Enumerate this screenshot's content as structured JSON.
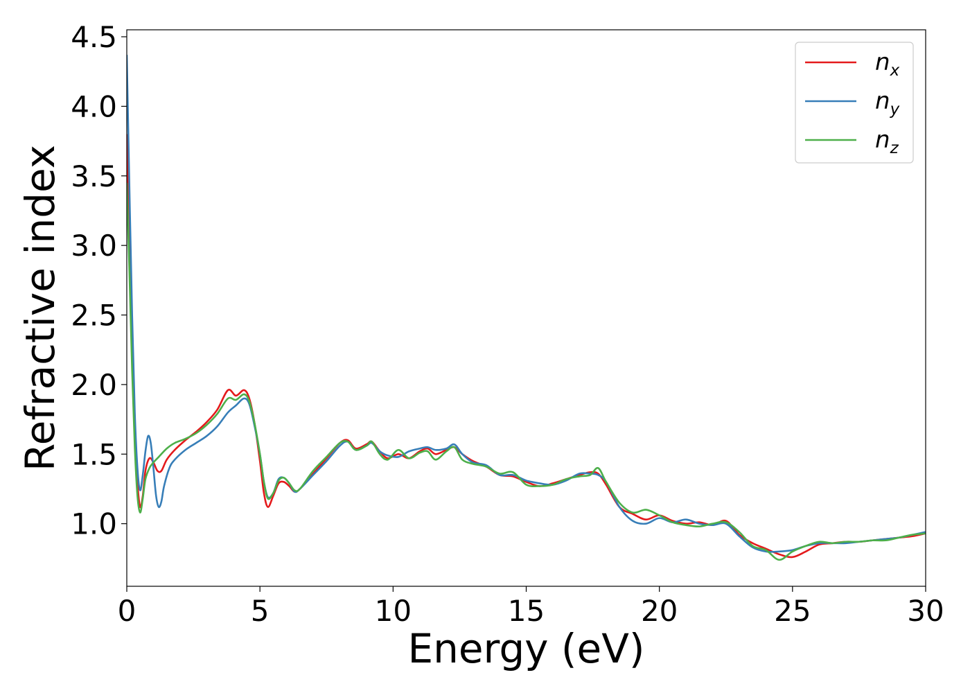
{
  "chart_data": {
    "type": "line",
    "xlabel": "Energy (eV)",
    "ylabel": "Refractive index",
    "xlim": [
      0,
      30
    ],
    "ylim": [
      0.55,
      4.55
    ],
    "xticks": [
      0,
      5,
      10,
      15,
      20,
      25,
      30
    ],
    "xtick_labels": [
      "0",
      "5",
      "10",
      "15",
      "20",
      "25",
      "30"
    ],
    "yticks": [
      1.0,
      1.5,
      2.0,
      2.5,
      3.0,
      3.5,
      4.0,
      4.5
    ],
    "ytick_labels": [
      "1.0",
      "1.5",
      "2.0",
      "2.5",
      "3.0",
      "3.5",
      "4.0",
      "4.5"
    ],
    "grid": false,
    "legend_position": "top-right",
    "series": [
      {
        "name": "n_x",
        "legend_base": "n",
        "legend_sub": "x",
        "color": "#e41a1c",
        "x": [
          0.0,
          0.1,
          0.2,
          0.3,
          0.4,
          0.5,
          0.6,
          0.7,
          0.85,
          1.0,
          1.15,
          1.3,
          1.5,
          1.8,
          2.2,
          2.6,
          3.0,
          3.4,
          3.8,
          4.1,
          4.4,
          4.6,
          4.8,
          5.0,
          5.15,
          5.3,
          5.5,
          5.7,
          5.9,
          6.1,
          6.3,
          6.5,
          7.0,
          7.5,
          8.0,
          8.3,
          8.6,
          9.0,
          9.2,
          9.5,
          9.8,
          10.2,
          10.6,
          11.0,
          11.3,
          11.6,
          12.0,
          12.3,
          12.6,
          13.0,
          13.5,
          14.0,
          14.5,
          15.0,
          15.5,
          16.0,
          16.5,
          17.0,
          17.4,
          17.7,
          18.0,
          18.5,
          19.0,
          19.5,
          20.0,
          20.5,
          21.0,
          21.5,
          22.0,
          22.5,
          23.0,
          23.5,
          24.0,
          24.5,
          25.0,
          25.5,
          26.0,
          26.5,
          27.0,
          27.5,
          28.0,
          28.5,
          29.0,
          29.5,
          30.0
        ],
        "y": [
          3.8,
          3.0,
          2.3,
          1.7,
          1.3,
          1.12,
          1.2,
          1.38,
          1.47,
          1.44,
          1.38,
          1.38,
          1.46,
          1.53,
          1.6,
          1.66,
          1.73,
          1.82,
          1.96,
          1.92,
          1.96,
          1.9,
          1.72,
          1.45,
          1.22,
          1.12,
          1.2,
          1.29,
          1.3,
          1.27,
          1.23,
          1.25,
          1.36,
          1.47,
          1.58,
          1.6,
          1.54,
          1.57,
          1.59,
          1.52,
          1.47,
          1.5,
          1.47,
          1.52,
          1.54,
          1.5,
          1.53,
          1.55,
          1.5,
          1.45,
          1.41,
          1.35,
          1.34,
          1.3,
          1.27,
          1.29,
          1.32,
          1.35,
          1.37,
          1.36,
          1.28,
          1.12,
          1.07,
          1.03,
          1.06,
          1.02,
          1.0,
          1.01,
          0.99,
          1.02,
          0.92,
          0.86,
          0.82,
          0.78,
          0.76,
          0.8,
          0.85,
          0.86,
          0.87,
          0.87,
          0.88,
          0.89,
          0.9,
          0.91,
          0.93
        ]
      },
      {
        "name": "n_y",
        "legend_base": "n",
        "legend_sub": "y",
        "color": "#377eb8",
        "x": [
          0.0,
          0.1,
          0.2,
          0.3,
          0.4,
          0.5,
          0.6,
          0.7,
          0.8,
          0.9,
          1.0,
          1.1,
          1.2,
          1.3,
          1.4,
          1.6,
          1.8,
          2.2,
          2.6,
          3.0,
          3.4,
          3.8,
          4.1,
          4.4,
          4.6,
          4.8,
          5.0,
          5.15,
          5.3,
          5.5,
          5.7,
          5.9,
          6.1,
          6.3,
          6.5,
          7.0,
          7.5,
          8.0,
          8.3,
          8.6,
          9.0,
          9.2,
          9.5,
          9.8,
          10.2,
          10.6,
          11.0,
          11.3,
          11.6,
          12.0,
          12.3,
          12.6,
          13.0,
          13.5,
          14.0,
          14.5,
          15.0,
          15.5,
          16.0,
          16.5,
          17.0,
          17.4,
          17.7,
          18.0,
          18.5,
          19.0,
          19.5,
          20.0,
          20.5,
          21.0,
          21.5,
          22.0,
          22.5,
          23.0,
          23.5,
          24.0,
          24.5,
          25.0,
          25.5,
          26.0,
          26.5,
          27.0,
          27.5,
          28.0,
          28.5,
          29.0,
          29.5,
          30.0
        ],
        "y": [
          4.37,
          3.4,
          2.5,
          1.8,
          1.4,
          1.24,
          1.35,
          1.52,
          1.63,
          1.58,
          1.4,
          1.2,
          1.12,
          1.16,
          1.27,
          1.4,
          1.46,
          1.53,
          1.58,
          1.63,
          1.7,
          1.8,
          1.85,
          1.9,
          1.86,
          1.7,
          1.5,
          1.3,
          1.19,
          1.22,
          1.32,
          1.33,
          1.29,
          1.23,
          1.25,
          1.35,
          1.45,
          1.56,
          1.59,
          1.53,
          1.56,
          1.58,
          1.52,
          1.49,
          1.48,
          1.52,
          1.54,
          1.55,
          1.53,
          1.54,
          1.57,
          1.5,
          1.44,
          1.42,
          1.35,
          1.35,
          1.31,
          1.29,
          1.28,
          1.31,
          1.36,
          1.36,
          1.35,
          1.3,
          1.12,
          1.02,
          1.0,
          1.04,
          1.01,
          1.03,
          1.0,
          0.99,
          1.0,
          0.91,
          0.83,
          0.8,
          0.8,
          0.81,
          0.84,
          0.86,
          0.86,
          0.86,
          0.87,
          0.88,
          0.89,
          0.9,
          0.92,
          0.94
        ]
      },
      {
        "name": "n_z",
        "legend_base": "n",
        "legend_sub": "z",
        "color": "#4daf4a",
        "x": [
          0.0,
          0.1,
          0.2,
          0.3,
          0.4,
          0.5,
          0.6,
          0.7,
          0.85,
          1.0,
          1.2,
          1.5,
          1.8,
          2.2,
          2.6,
          3.0,
          3.4,
          3.8,
          4.1,
          4.4,
          4.6,
          4.8,
          5.0,
          5.15,
          5.3,
          5.5,
          5.7,
          5.9,
          6.1,
          6.3,
          6.5,
          7.0,
          7.5,
          8.0,
          8.3,
          8.6,
          9.0,
          9.2,
          9.5,
          9.8,
          10.2,
          10.6,
          11.0,
          11.3,
          11.6,
          12.0,
          12.3,
          12.6,
          13.0,
          13.5,
          14.0,
          14.5,
          15.0,
          15.5,
          16.0,
          16.5,
          17.0,
          17.4,
          17.7,
          18.0,
          18.5,
          19.0,
          19.5,
          20.0,
          20.5,
          21.0,
          21.5,
          22.0,
          22.5,
          23.0,
          23.5,
          24.0,
          24.5,
          25.0,
          25.5,
          26.0,
          26.5,
          27.0,
          27.5,
          28.0,
          28.5,
          29.0,
          29.5,
          30.0
        ],
        "y": [
          3.45,
          2.8,
          2.1,
          1.55,
          1.2,
          1.08,
          1.18,
          1.32,
          1.4,
          1.44,
          1.48,
          1.54,
          1.58,
          1.61,
          1.65,
          1.71,
          1.79,
          1.9,
          1.89,
          1.93,
          1.88,
          1.72,
          1.5,
          1.3,
          1.18,
          1.22,
          1.31,
          1.33,
          1.29,
          1.24,
          1.25,
          1.38,
          1.48,
          1.58,
          1.59,
          1.53,
          1.56,
          1.59,
          1.5,
          1.46,
          1.53,
          1.47,
          1.51,
          1.52,
          1.46,
          1.52,
          1.55,
          1.46,
          1.43,
          1.41,
          1.36,
          1.37,
          1.28,
          1.27,
          1.28,
          1.32,
          1.34,
          1.35,
          1.4,
          1.3,
          1.15,
          1.08,
          1.1,
          1.06,
          1.01,
          0.99,
          0.98,
          1.0,
          1.01,
          0.94,
          0.84,
          0.81,
          0.74,
          0.8,
          0.84,
          0.87,
          0.86,
          0.87,
          0.87,
          0.88,
          0.88,
          0.9,
          0.92,
          0.93
        ]
      }
    ]
  }
}
